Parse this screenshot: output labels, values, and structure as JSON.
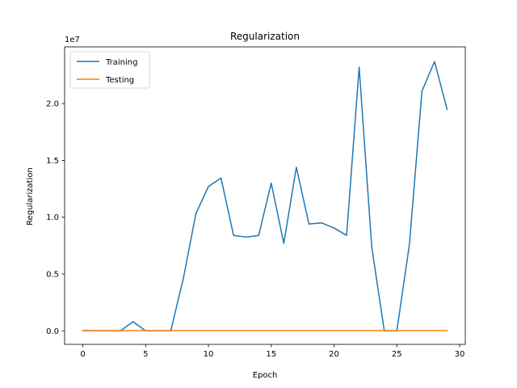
{
  "chart_data": {
    "type": "line",
    "title": "Regularization",
    "xlabel": "Epoch",
    "ylabel": "Regularization",
    "y_offset_label": "1e7",
    "x_ticks": [
      "0",
      "5",
      "10",
      "15",
      "20",
      "25",
      "30"
    ],
    "y_ticks": [
      "0.0",
      "0.5",
      "1.0",
      "1.5",
      "2.0"
    ],
    "xlim": [
      -1.45,
      30.45
    ],
    "ylim": [
      -1190000,
      24990000
    ],
    "grid": false,
    "legend_position": "upper-left",
    "x": [
      0,
      1,
      2,
      3,
      4,
      5,
      6,
      7,
      8,
      9,
      10,
      11,
      12,
      13,
      14,
      15,
      16,
      17,
      18,
      19,
      20,
      21,
      22,
      23,
      24,
      25,
      26,
      27,
      28,
      29
    ],
    "series": [
      {
        "name": "Training",
        "color": "#1f77b4",
        "values": [
          30000,
          0,
          0,
          0,
          800000,
          0,
          0,
          0,
          4600000,
          10300000,
          12700000,
          13450000,
          8400000,
          8250000,
          8400000,
          13000000,
          7700000,
          14400000,
          9400000,
          9500000,
          9050000,
          8400000,
          23200000,
          7400000,
          0,
          0,
          7600000,
          21100000,
          23700000,
          19500000
        ]
      },
      {
        "name": "Testing",
        "color": "#ff7f0e",
        "values": [
          20000,
          20000,
          20000,
          20000,
          20000,
          20000,
          20000,
          20000,
          20000,
          20000,
          20000,
          20000,
          20000,
          20000,
          20000,
          20000,
          20000,
          20000,
          20000,
          20000,
          20000,
          20000,
          20000,
          20000,
          20000,
          20000,
          20000,
          20000,
          20000,
          20000
        ]
      }
    ]
  }
}
